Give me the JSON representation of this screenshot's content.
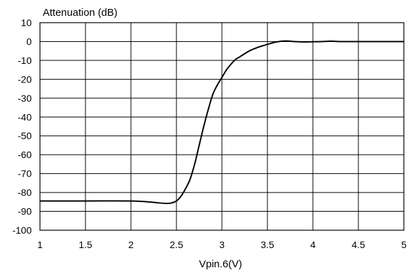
{
  "chart_data": {
    "type": "line",
    "title": "",
    "ylabel": "Attenuation (dB)",
    "xlabel": "Vpin.6(V)",
    "xlim": [
      1,
      5
    ],
    "ylim": [
      -100,
      10
    ],
    "x_ticks": [
      1,
      1.5,
      2,
      2.5,
      3,
      3.5,
      4,
      4.5,
      5
    ],
    "x_tick_labels": [
      "1",
      "1.5",
      "2",
      "2.5",
      "3",
      "3.5",
      "4",
      "4.5",
      "5"
    ],
    "y_ticks": [
      10,
      0,
      -10,
      -20,
      -30,
      -40,
      -50,
      -60,
      -70,
      -80,
      -90,
      -100
    ],
    "y_tick_labels": [
      "10",
      "0",
      "-10",
      "-20",
      "-30",
      "-40",
      "-50",
      "-60",
      "-70",
      "-80",
      "-90",
      "-100"
    ],
    "grid": true,
    "legend": "none",
    "series": [
      {
        "color": "#000000",
        "x": [
          1.0,
          1.5,
          2.0,
          2.2,
          2.3,
          2.4,
          2.45,
          2.5,
          2.55,
          2.6,
          2.65,
          2.7,
          2.75,
          2.8,
          2.85,
          2.9,
          2.95,
          3.0,
          3.05,
          3.1,
          3.15,
          3.2,
          3.3,
          3.4,
          3.5,
          3.6,
          3.7,
          3.8,
          3.9,
          4.0,
          4.1,
          4.2,
          4.3,
          4.5,
          5.0
        ],
        "y": [
          -84.5,
          -84.5,
          -84.5,
          -85.0,
          -85.5,
          -85.8,
          -85.5,
          -84.5,
          -82.0,
          -78.0,
          -73.0,
          -65.0,
          -55.0,
          -45.0,
          -36.0,
          -28.0,
          -23.0,
          -19.0,
          -15.0,
          -12.0,
          -9.5,
          -8.0,
          -5.0,
          -3.0,
          -1.5,
          -0.2,
          0.3,
          0.0,
          -0.2,
          -0.1,
          0.0,
          0.2,
          0.0,
          0.0,
          0.0
        ]
      }
    ]
  }
}
